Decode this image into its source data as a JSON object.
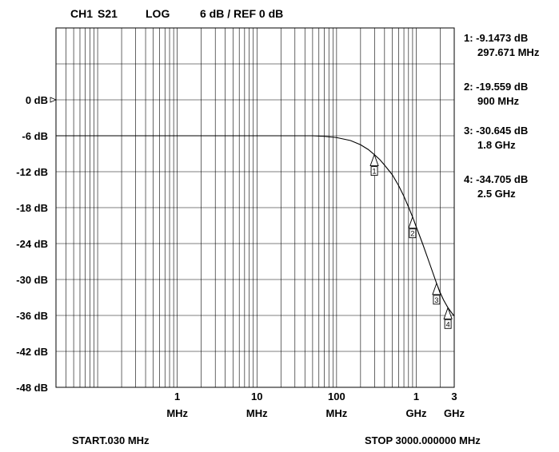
{
  "header": {
    "channel": "CH1",
    "param": "S21",
    "format": "LOG",
    "scale": "6 dB / REF 0 dB"
  },
  "footer": {
    "start": "START.030 MHz",
    "stop": "STOP 3000.000000 MHz"
  },
  "markers": [
    {
      "id": "1",
      "value_label": "1: -9.1473 dB",
      "freq_label": "297.671 MHz"
    },
    {
      "id": "2",
      "value_label": "2: -19.559 dB",
      "freq_label": "900 MHz"
    },
    {
      "id": "3",
      "value_label": "3: -30.645 dB",
      "freq_label": "1.8 GHz"
    },
    {
      "id": "4",
      "value_label": "4: -34.705 dB",
      "freq_label": "2.5 GHz"
    }
  ],
  "chart_data": {
    "type": "line",
    "x_scale": "log",
    "x_unit": "MHz",
    "xlim": [
      0.03,
      3000
    ],
    "ylim": [
      -48,
      12
    ],
    "grid": true,
    "reference_level_db": 0,
    "y_ticks": [
      {
        "value": 0,
        "label": "0 dB"
      },
      {
        "value": -6,
        "label": "-6 dB"
      },
      {
        "value": -12,
        "label": "-12 dB"
      },
      {
        "value": -18,
        "label": "-18 dB"
      },
      {
        "value": -24,
        "label": "-24 dB"
      },
      {
        "value": -30,
        "label": "-30 dB"
      },
      {
        "value": -36,
        "label": "-36 dB"
      },
      {
        "value": -42,
        "label": "-42 dB"
      },
      {
        "value": -48,
        "label": "-48 dB"
      }
    ],
    "x_ticks": [
      {
        "value": 1,
        "num": "1",
        "unit": "MHz"
      },
      {
        "value": 10,
        "num": "10",
        "unit": "MHz"
      },
      {
        "value": 100,
        "num": "100",
        "unit": "MHz"
      },
      {
        "value": 1000,
        "num": "1",
        "unit": "GHz"
      },
      {
        "value": 3000,
        "num": "3",
        "unit": "GHz"
      }
    ],
    "series": [
      {
        "x": [
          0.03,
          1,
          10,
          30,
          50,
          70,
          100,
          150,
          200,
          250,
          297.671,
          350,
          400,
          500,
          600,
          700,
          800,
          900,
          1000,
          1200,
          1400,
          1600,
          1800,
          2000,
          2200,
          2500,
          2800,
          3000
        ],
        "y": [
          -6,
          -6,
          -6,
          -6,
          -6,
          -6.1,
          -6.3,
          -6.8,
          -7.5,
          -8.3,
          -9.1473,
          -10,
          -10.9,
          -12.5,
          -14.3,
          -16.1,
          -17.9,
          -19.559,
          -21.2,
          -24,
          -26.5,
          -28.7,
          -30.645,
          -32.2,
          -33.4,
          -34.705,
          -35.6,
          -36.1
        ]
      }
    ],
    "marker_points": [
      {
        "id": "1",
        "x": 297.671,
        "y": -9.1473
      },
      {
        "id": "2",
        "x": 900,
        "y": -19.559
      },
      {
        "id": "3",
        "x": 1800,
        "y": -30.645
      },
      {
        "id": "4",
        "x": 2500,
        "y": -34.705
      }
    ]
  }
}
